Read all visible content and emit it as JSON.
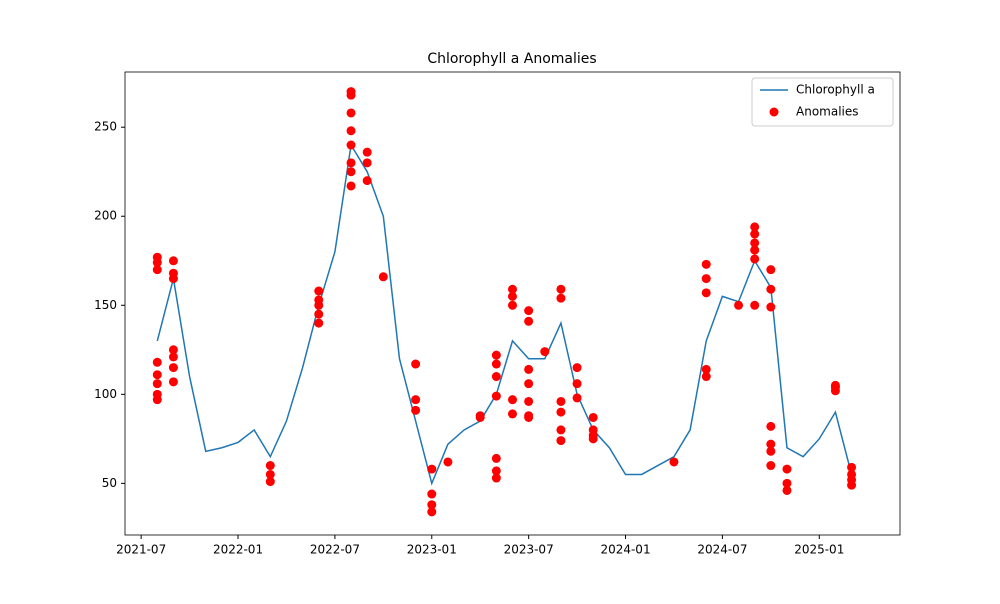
{
  "chart_data": {
    "type": "line",
    "title": "Chlorophyll a Anomalies",
    "xlim": [
      "2021-06",
      "2025-06"
    ],
    "xticks": [
      "2021-07",
      "2022-01",
      "2022-07",
      "2023-01",
      "2023-07",
      "2024-01",
      "2024-07",
      "2025-01"
    ],
    "ylim": [
      21,
      281
    ],
    "yticks": [
      50,
      100,
      150,
      200,
      250
    ],
    "legend": "upper right",
    "series": [
      {
        "name": "Chlorophyll a",
        "kind": "line",
        "color": "#1f77b4",
        "x": [
          "2021-08",
          "2021-09",
          "2021-10",
          "2021-11",
          "2021-12",
          "2022-01",
          "2022-02",
          "2022-03",
          "2022-04",
          "2022-05",
          "2022-06",
          "2022-07",
          "2022-08",
          "2022-09",
          "2022-10",
          "2022-11",
          "2022-12",
          "2023-01",
          "2023-02",
          "2023-03",
          "2023-04",
          "2023-05",
          "2023-06",
          "2023-07",
          "2023-08",
          "2023-09",
          "2023-10",
          "2023-11",
          "2023-12",
          "2024-01",
          "2024-02",
          "2024-03",
          "2024-04",
          "2024-05",
          "2024-06",
          "2024-07",
          "2024-08",
          "2024-09",
          "2024-10",
          "2024-11",
          "2024-12",
          "2025-01",
          "2025-02",
          "2025-03"
        ],
        "values": [
          130,
          165,
          110,
          68,
          70,
          73,
          80,
          65,
          85,
          115,
          150,
          180,
          240,
          225,
          200,
          120,
          85,
          50,
          72,
          80,
          85,
          100,
          130,
          120,
          120,
          140,
          100,
          80,
          70,
          55,
          55,
          60,
          65,
          80,
          130,
          155,
          152,
          175,
          160,
          70,
          65,
          75,
          90,
          55
        ]
      },
      {
        "name": "Anomalies",
        "kind": "scatter",
        "color": "#ff0000",
        "x": [
          "2021-08",
          "2021-08",
          "2021-08",
          "2021-08",
          "2021-08",
          "2021-08",
          "2021-08",
          "2021-08",
          "2021-09",
          "2021-09",
          "2021-09",
          "2021-09",
          "2021-09",
          "2021-09",
          "2021-09",
          "2022-03",
          "2022-03",
          "2022-03",
          "2022-06",
          "2022-06",
          "2022-06",
          "2022-06",
          "2022-06",
          "2022-08",
          "2022-08",
          "2022-08",
          "2022-08",
          "2022-08",
          "2022-08",
          "2022-08",
          "2022-08",
          "2022-09",
          "2022-09",
          "2022-09",
          "2022-10",
          "2022-12",
          "2022-12",
          "2022-12",
          "2023-01",
          "2023-01",
          "2023-01",
          "2023-01",
          "2023-02",
          "2023-04",
          "2023-04",
          "2023-05",
          "2023-05",
          "2023-05",
          "2023-05",
          "2023-05",
          "2023-05",
          "2023-05",
          "2023-06",
          "2023-06",
          "2023-06",
          "2023-06",
          "2023-06",
          "2023-07",
          "2023-07",
          "2023-07",
          "2023-07",
          "2023-07",
          "2023-07",
          "2023-07",
          "2023-08",
          "2023-09",
          "2023-09",
          "2023-09",
          "2023-09",
          "2023-09",
          "2023-09",
          "2023-10",
          "2023-10",
          "2023-10",
          "2023-11",
          "2023-11",
          "2023-11",
          "2023-11",
          "2024-04",
          "2024-06",
          "2024-06",
          "2024-06",
          "2024-06",
          "2024-06",
          "2024-08",
          "2024-09",
          "2024-09",
          "2024-09",
          "2024-09",
          "2024-09",
          "2024-09",
          "2024-10",
          "2024-10",
          "2024-10",
          "2024-10",
          "2024-10",
          "2024-10",
          "2024-10",
          "2024-11",
          "2024-11",
          "2024-11",
          "2025-02",
          "2025-02",
          "2025-02",
          "2025-03",
          "2025-03",
          "2025-03",
          "2025-03"
        ],
        "values": [
          97,
          100,
          106,
          111,
          118,
          170,
          174,
          177,
          125,
          121,
          115,
          107,
          175,
          168,
          165,
          60,
          55,
          51,
          158,
          153,
          140,
          145,
          150,
          217,
          225,
          230,
          240,
          248,
          258,
          270,
          268,
          236,
          230,
          220,
          166,
          117,
          97,
          91,
          58,
          44,
          38,
          34,
          62,
          88,
          87,
          99,
          110,
          117,
          122,
          64,
          57,
          53,
          89,
          97,
          150,
          155,
          159,
          147,
          141,
          88,
          96,
          106,
          114,
          87,
          124,
          159,
          154,
          96,
          90,
          80,
          74,
          115,
          106,
          98,
          87,
          80,
          75,
          77,
          62,
          173,
          165,
          157,
          114,
          110,
          150,
          150,
          176,
          181,
          185,
          190,
          194,
          170,
          159,
          149,
          82,
          72,
          68,
          60,
          46,
          50,
          58,
          105,
          104,
          102,
          55,
          49,
          52,
          59
        ]
      }
    ]
  }
}
